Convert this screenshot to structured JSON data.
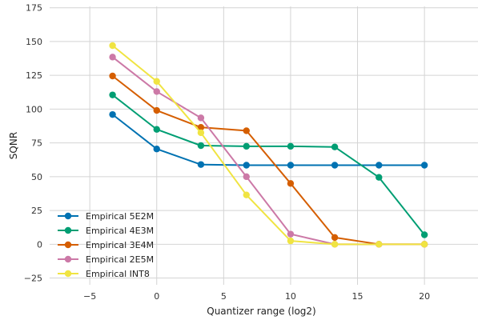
{
  "chart_data": {
    "type": "line",
    "xlabel": "Quantizer range (log2)",
    "ylabel": "SQNR",
    "xlim": [
      -8,
      24
    ],
    "ylim": [
      -30,
      176
    ],
    "xticks": [
      -5,
      0,
      5,
      10,
      15,
      20
    ],
    "yticks": [
      -25,
      0,
      25,
      50,
      75,
      100,
      125,
      150,
      175
    ],
    "grid": true,
    "legend_position": "lower-left",
    "x": [
      -3.3,
      0,
      3.3,
      6.7,
      10,
      13.3,
      16.6,
      20
    ],
    "series": [
      {
        "name": "Empirical 5E2M",
        "color": "#0072b2",
        "values": [
          96,
          70.5,
          59,
          58.5,
          58.5,
          58.5,
          58.5,
          58.5
        ]
      },
      {
        "name": "Empirical 4E3M",
        "color": "#009e73",
        "values": [
          110.5,
          85,
          73,
          72.5,
          72.5,
          72,
          49.5,
          7
        ]
      },
      {
        "name": "Empirical 3E4M",
        "color": "#d55e00",
        "values": [
          124.5,
          99,
          86.5,
          84,
          45,
          5,
          0,
          0
        ]
      },
      {
        "name": "Empirical 2E5M",
        "color": "#cc79a7",
        "values": [
          138.5,
          113,
          93.5,
          50,
          7.5,
          0,
          0,
          0
        ]
      },
      {
        "name": "Empirical INT8",
        "color": "#f0e442",
        "values": [
          147,
          120.5,
          82.5,
          36.5,
          2.5,
          0,
          0,
          0
        ]
      }
    ]
  }
}
